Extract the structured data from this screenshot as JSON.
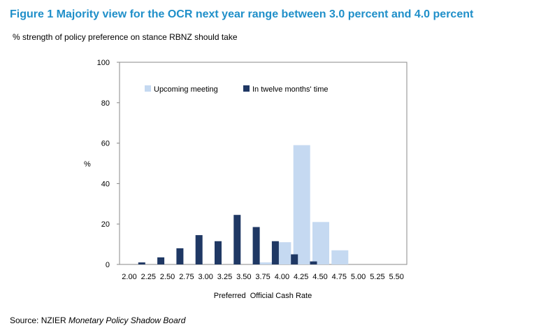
{
  "chart_data": {
    "type": "bar",
    "title": "Figure 1 Majority view for the OCR next year range between 3.0 percent and 4.0 percent",
    "subtitle": "% strength of policy preference on stance RBNZ should take",
    "xlabel": "Preferred  Official Cash Rate",
    "ylabel": "%",
    "ylim": [
      0,
      100
    ],
    "yticks": [
      0,
      20,
      40,
      60,
      80,
      100
    ],
    "categories": [
      "2.00",
      "2.25",
      "2.50",
      "2.75",
      "3.00",
      "3.25",
      "3.50",
      "3.75",
      "4.00",
      "4.25",
      "4.50",
      "4.75",
      "5.00",
      "5.25",
      "5.50"
    ],
    "series": [
      {
        "name": "Upcoming meeting",
        "color": "#c5d9f1",
        "values": [
          0,
          0,
          0,
          0,
          0,
          0,
          0,
          1,
          11,
          59,
          21,
          7,
          0,
          0,
          0
        ]
      },
      {
        "name": "In twelve months' time",
        "color": "#1f3864",
        "values": [
          0,
          1,
          3.5,
          8,
          14.5,
          11.5,
          24.5,
          18.5,
          11.5,
          5,
          1.5,
          0,
          0,
          0,
          0
        ]
      }
    ],
    "legend_position": "top-center",
    "grid": false
  },
  "source": {
    "prefix": "Source: NZIER ",
    "italic": "Monetary Policy Shadow Board"
  }
}
